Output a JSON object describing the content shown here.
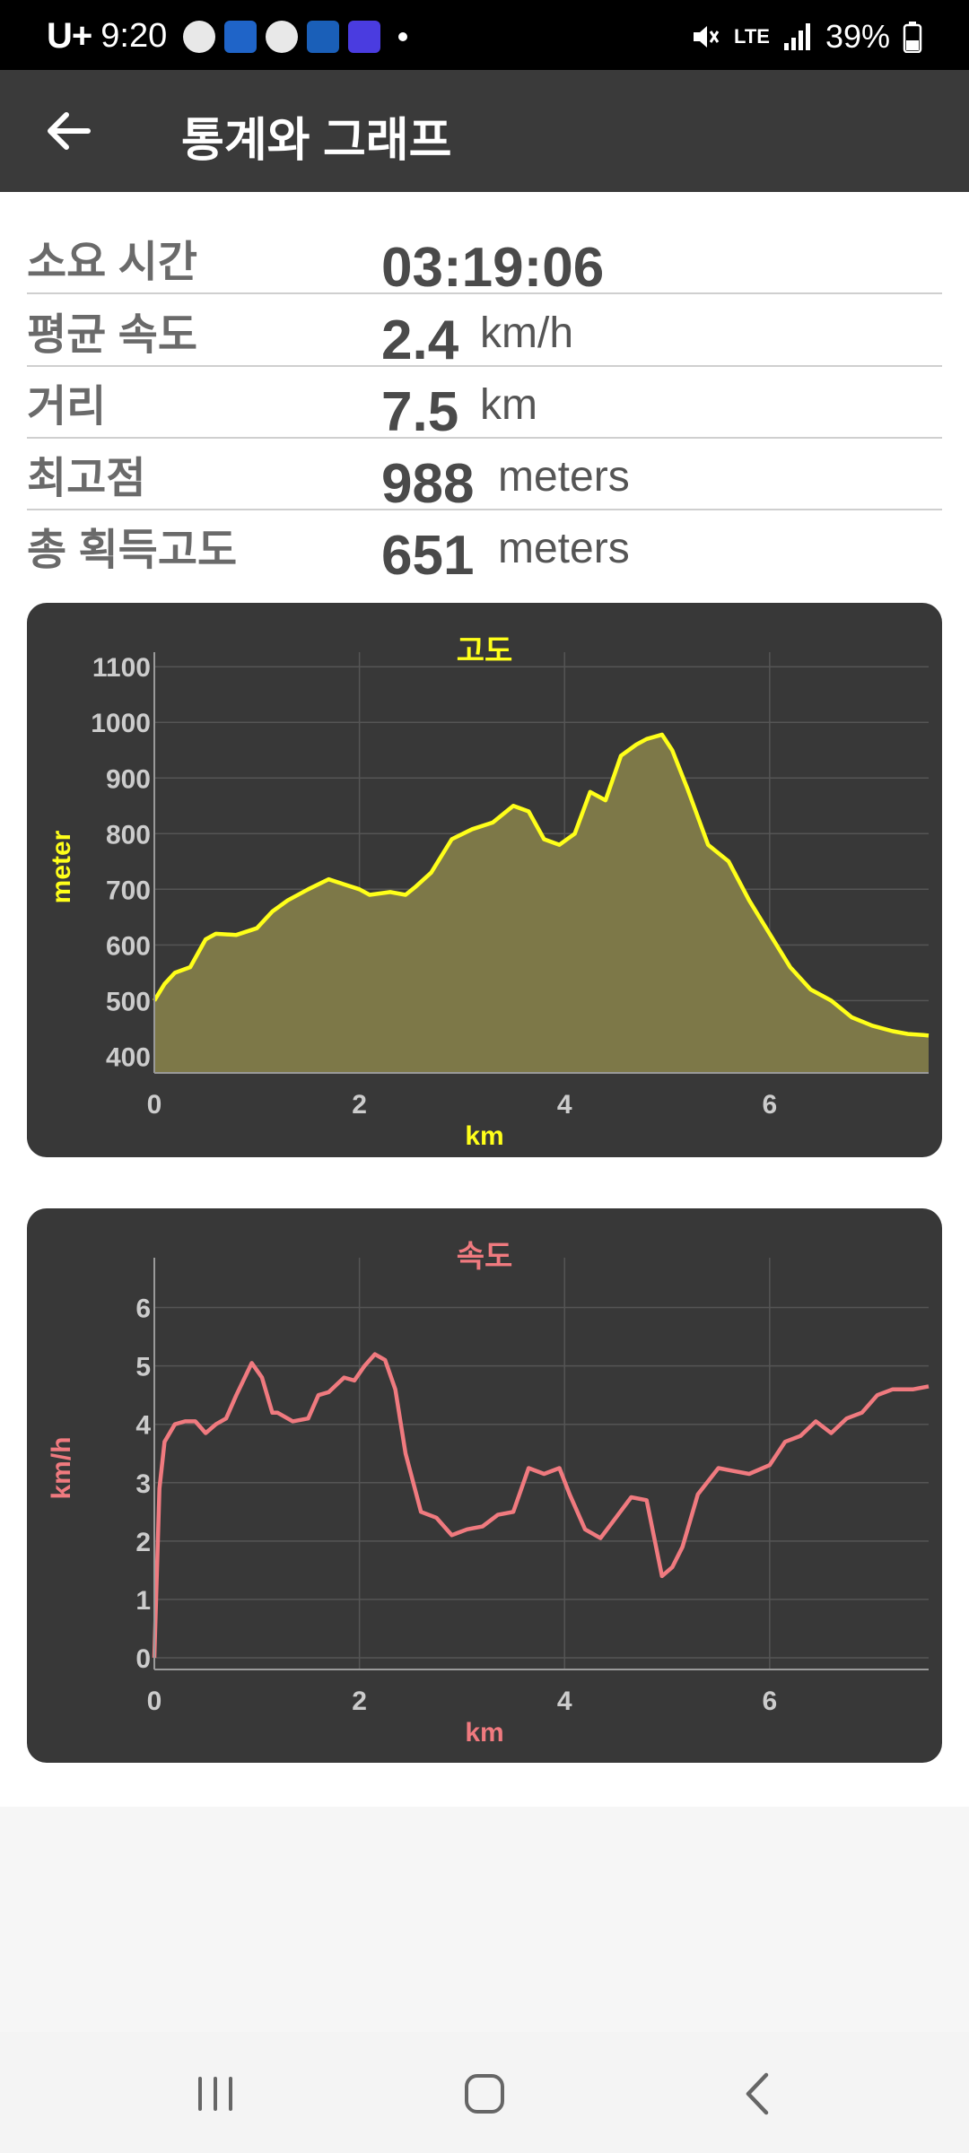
{
  "status_bar": {
    "carrier": "U+",
    "time": "9:20",
    "battery": "39%",
    "network": "LTE"
  },
  "app_bar": {
    "title": "통계와 그래프",
    "back_icon": "arrow-left-icon"
  },
  "stats": [
    {
      "label": "소요 시간",
      "value": "03:19:06",
      "unit": ""
    },
    {
      "label": "평균 속도",
      "value": "2.4",
      "unit": "km/h"
    },
    {
      "label": "거리",
      "value": "7.5",
      "unit": "km"
    },
    {
      "label": "최고점",
      "value": "988",
      "unit": "meters"
    },
    {
      "label": "총 획득고도",
      "value": "651",
      "unit": "meters"
    }
  ],
  "chart_data": [
    {
      "type": "area",
      "title": "고도",
      "xlabel": "km",
      "ylabel": "meter",
      "xlim": [
        0,
        7.55
      ],
      "ylim": [
        370,
        1110
      ],
      "xticks": [
        0,
        2,
        4,
        6
      ],
      "yticks": [
        400,
        500,
        600,
        700,
        800,
        900,
        1000,
        1100
      ],
      "grid": true,
      "line_color": "#ffff1a",
      "fill_color": "#7d7848",
      "title_color": "#ffff1a",
      "x": [
        0,
        0.1,
        0.2,
        0.35,
        0.5,
        0.6,
        0.8,
        1.0,
        1.15,
        1.3,
        1.5,
        1.7,
        1.8,
        2.0,
        2.1,
        2.3,
        2.45,
        2.55,
        2.7,
        2.9,
        3.1,
        3.3,
        3.5,
        3.65,
        3.8,
        3.95,
        4.1,
        4.25,
        4.4,
        4.55,
        4.7,
        4.8,
        4.95,
        5.05,
        5.2,
        5.4,
        5.6,
        5.8,
        6.0,
        6.2,
        6.4,
        6.6,
        6.8,
        7.0,
        7.2,
        7.35,
        7.5,
        7.55
      ],
      "values": [
        500,
        530,
        550,
        560,
        610,
        620,
        618,
        630,
        660,
        680,
        700,
        718,
        712,
        700,
        690,
        695,
        690,
        705,
        730,
        790,
        808,
        820,
        850,
        840,
        790,
        780,
        800,
        875,
        860,
        940,
        960,
        970,
        978,
        950,
        880,
        780,
        750,
        680,
        620,
        560,
        520,
        500,
        470,
        455,
        445,
        440,
        438,
        437
      ]
    },
    {
      "type": "line",
      "title": "속도",
      "xlabel": "km",
      "ylabel": "km/h",
      "xlim": [
        0,
        7.55
      ],
      "ylim": [
        -0.2,
        6.7
      ],
      "xticks": [
        0,
        2,
        4,
        6
      ],
      "yticks": [
        0,
        1,
        2,
        3,
        4,
        5,
        6
      ],
      "grid": true,
      "line_color": "#f07a7f",
      "title_color": "#f07a7f",
      "x": [
        0,
        0.05,
        0.1,
        0.2,
        0.3,
        0.4,
        0.5,
        0.6,
        0.7,
        0.8,
        0.95,
        1.05,
        1.15,
        1.2,
        1.35,
        1.5,
        1.6,
        1.7,
        1.85,
        1.95,
        2.05,
        2.15,
        2.25,
        2.35,
        2.45,
        2.6,
        2.75,
        2.9,
        3.05,
        3.2,
        3.35,
        3.5,
        3.65,
        3.8,
        3.95,
        4.05,
        4.2,
        4.35,
        4.5,
        4.65,
        4.8,
        4.95,
        5.05,
        5.15,
        5.3,
        5.5,
        5.65,
        5.8,
        6.0,
        6.15,
        6.3,
        6.45,
        6.6,
        6.75,
        6.9,
        7.05,
        7.2,
        7.4,
        7.55
      ],
      "values": [
        0,
        2.9,
        3.7,
        4.0,
        4.05,
        4.05,
        3.85,
        4.0,
        4.1,
        4.5,
        5.05,
        4.8,
        4.2,
        4.2,
        4.05,
        4.1,
        4.5,
        4.55,
        4.8,
        4.75,
        5.0,
        5.2,
        5.1,
        4.6,
        3.5,
        2.5,
        2.4,
        2.1,
        2.2,
        2.25,
        2.45,
        2.5,
        3.25,
        3.15,
        3.25,
        2.8,
        2.2,
        2.05,
        2.4,
        2.75,
        2.7,
        1.4,
        1.55,
        1.9,
        2.8,
        3.25,
        3.2,
        3.15,
        3.3,
        3.7,
        3.8,
        4.05,
        3.85,
        4.1,
        4.2,
        4.5,
        4.6,
        4.6,
        4.65
      ]
    }
  ]
}
